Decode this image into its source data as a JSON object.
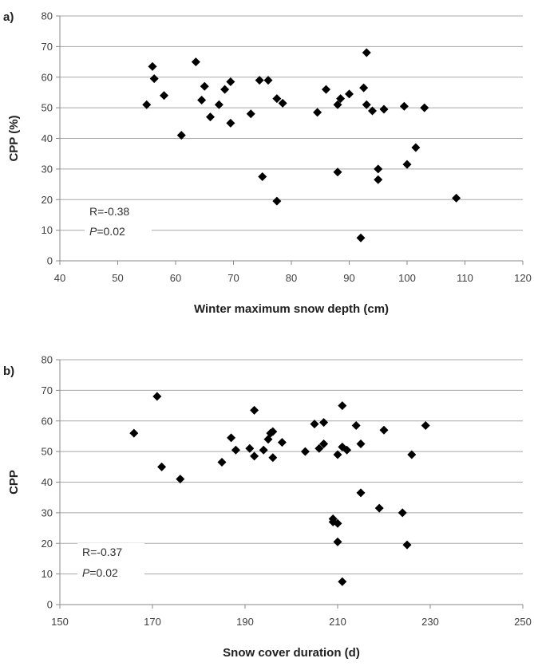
{
  "chart_data": [
    {
      "type": "scatter",
      "panel_label": "a)",
      "xlabel": "Winter maximum snow depth (cm)",
      "ylabel": "CPP  (%)",
      "xlim": [
        40,
        120
      ],
      "ylim": [
        0,
        80
      ],
      "xticks": [
        40,
        50,
        60,
        70,
        80,
        90,
        100,
        110,
        120
      ],
      "yticks": [
        0,
        10,
        20,
        30,
        40,
        50,
        60,
        70,
        80
      ],
      "grid": "horizontal",
      "annotation": {
        "r_text": "R=-0.38",
        "p_italic": "P",
        "p_value": "=0.02"
      },
      "marker_color": "#000000",
      "points": [
        [
          55,
          51
        ],
        [
          56,
          63.5
        ],
        [
          56.3,
          59.5
        ],
        [
          58,
          54
        ],
        [
          61,
          41
        ],
        [
          63.5,
          65
        ],
        [
          64.5,
          52.5
        ],
        [
          65,
          57
        ],
        [
          66,
          47
        ],
        [
          67.5,
          51
        ],
        [
          68.5,
          56
        ],
        [
          69.5,
          58.5
        ],
        [
          69.5,
          45
        ],
        [
          73,
          48
        ],
        [
          74.5,
          59
        ],
        [
          75,
          27.5
        ],
        [
          76,
          59
        ],
        [
          77.5,
          53
        ],
        [
          77.5,
          19.5
        ],
        [
          78.5,
          51.5
        ],
        [
          84.5,
          48.5
        ],
        [
          86,
          56
        ],
        [
          88,
          51
        ],
        [
          88,
          29
        ],
        [
          88.5,
          53
        ],
        [
          90,
          54.5
        ],
        [
          92,
          7.5
        ],
        [
          92.5,
          56.5
        ],
        [
          93,
          68
        ],
        [
          93,
          51
        ],
        [
          94,
          49
        ],
        [
          95,
          30
        ],
        [
          95,
          26.5
        ],
        [
          96,
          49.5
        ],
        [
          99.5,
          50.5
        ],
        [
          100,
          31.5
        ],
        [
          101.5,
          37
        ],
        [
          103,
          50
        ],
        [
          108.5,
          20.5
        ]
      ]
    },
    {
      "type": "scatter",
      "panel_label": "b)",
      "xlabel": "Snow cover duration (d)",
      "ylabel": "CPP",
      "xlim": [
        150,
        250
      ],
      "ylim": [
        0,
        80
      ],
      "xticks": [
        150,
        170,
        190,
        210,
        230,
        250
      ],
      "yticks": [
        0,
        10,
        20,
        30,
        40,
        50,
        60,
        70,
        80
      ],
      "grid": "horizontal",
      "annotation": {
        "r_text": "R=-0.37",
        "p_italic": "P",
        "p_value": "=0.02"
      },
      "marker_color": "#000000",
      "points": [
        [
          166,
          56
        ],
        [
          171,
          68
        ],
        [
          172,
          45
        ],
        [
          176,
          41
        ],
        [
          185,
          46.5
        ],
        [
          187,
          54.5
        ],
        [
          188,
          50.5
        ],
        [
          191,
          51
        ],
        [
          192,
          63.5
        ],
        [
          192,
          48.5
        ],
        [
          194,
          50.5
        ],
        [
          195,
          54
        ],
        [
          195.5,
          56
        ],
        [
          196,
          56.5
        ],
        [
          196,
          48
        ],
        [
          198,
          53
        ],
        [
          203,
          50
        ],
        [
          205,
          59
        ],
        [
          206,
          51
        ],
        [
          207,
          59.5
        ],
        [
          207,
          52.5
        ],
        [
          209,
          28
        ],
        [
          209,
          27
        ],
        [
          210,
          26.5
        ],
        [
          210,
          20.5
        ],
        [
          210,
          49
        ],
        [
          211,
          65
        ],
        [
          211,
          51.5
        ],
        [
          211,
          7.5
        ],
        [
          212,
          50.5
        ],
        [
          214,
          58.5
        ],
        [
          215,
          52.5
        ],
        [
          215,
          36.5
        ],
        [
          219,
          31.5
        ],
        [
          220,
          57
        ],
        [
          224,
          30
        ],
        [
          225,
          19.5
        ],
        [
          226,
          49
        ],
        [
          229,
          58.5
        ]
      ]
    }
  ]
}
